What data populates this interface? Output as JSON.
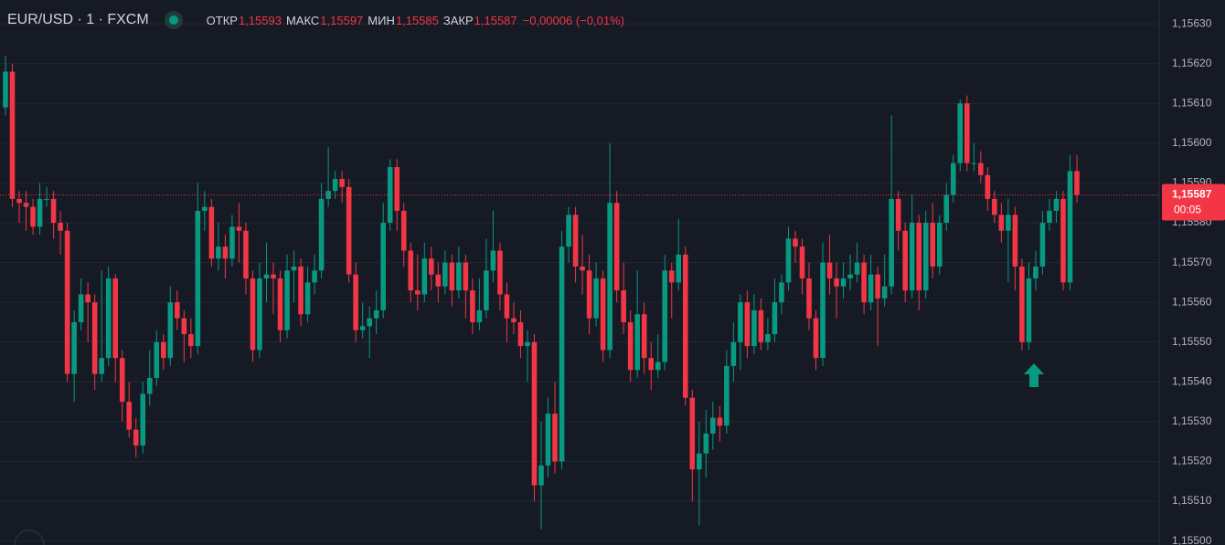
{
  "header": {
    "symbol": "EUR/USD · 1 · FXCM",
    "open_label": "ОТКР",
    "open": "1,15593",
    "high_label": "МАКС",
    "high": "1,15597",
    "low_label": "МИН",
    "low": "1,15585",
    "close_label": "ЗАКР",
    "close": "1,15587",
    "change": "−0,00006 (−0,01%)"
  },
  "chart_data": {
    "type": "candlestick",
    "up_color": "#089981",
    "down_color": "#f23645",
    "ylim": [
      1.15499,
      1.15636
    ],
    "yticks": [
      {
        "value": 1.155,
        "label": "1,15500"
      },
      {
        "value": 1.1551,
        "label": "1,15510"
      },
      {
        "value": 1.1552,
        "label": "1,15520"
      },
      {
        "value": 1.1553,
        "label": "1,15530"
      },
      {
        "value": 1.1554,
        "label": "1,15540"
      },
      {
        "value": 1.1555,
        "label": "1,15550"
      },
      {
        "value": 1.1556,
        "label": "1,15560"
      },
      {
        "value": 1.1557,
        "label": "1,15570"
      },
      {
        "value": 1.1558,
        "label": "1,15580"
      },
      {
        "value": 1.1559,
        "label": "1,15590"
      },
      {
        "value": 1.156,
        "label": "1,15600"
      },
      {
        "value": 1.1561,
        "label": "1,15610"
      },
      {
        "value": 1.1562,
        "label": "1,15620"
      },
      {
        "value": 1.1563,
        "label": "1,15630"
      }
    ],
    "grid": true,
    "last_price": {
      "value": 1.15587,
      "label": "1,15587"
    },
    "countdown": "00:05",
    "open": [
      1.15609,
      1.15618,
      1.15586,
      1.15585,
      1.15584,
      1.15579,
      1.15586,
      1.15586,
      1.1558,
      1.15578,
      1.15542,
      1.15555,
      1.15562,
      1.1556,
      1.15542,
      1.15546,
      1.15566,
      1.15546,
      1.15535,
      1.15528,
      1.15524,
      1.15537,
      1.15541,
      1.1555,
      1.15546,
      1.1556,
      1.15556,
      1.15552,
      1.15549,
      1.15583,
      1.15584,
      1.15571,
      1.15574,
      1.15571,
      1.15579,
      1.15578,
      1.15566,
      1.15548,
      1.15566,
      1.15567,
      1.15566,
      1.15553,
      1.15568,
      1.15569,
      1.15557,
      1.15565,
      1.15568,
      1.15586,
      1.15588,
      1.15591,
      1.15589,
      1.15567,
      1.15553,
      1.15554,
      1.15556,
      1.15558,
      1.1558,
      1.15594,
      1.15583,
      1.15573,
      1.15563,
      1.15562,
      1.15571,
      1.15567,
      1.15564,
      1.1557,
      1.15563,
      1.1557,
      1.15563,
      1.15555,
      1.15558,
      1.15568,
      1.15573,
      1.15562,
      1.15556,
      1.15555,
      1.15549,
      1.1555,
      1.15514,
      1.15519,
      1.15532,
      1.1552,
      1.15574,
      1.15582,
      1.15569,
      1.15568,
      1.15556,
      1.15566,
      1.15548,
      1.15585,
      1.15563,
      1.15555,
      1.15543,
      1.15557,
      1.15546,
      1.15543,
      1.15545,
      1.15568,
      1.15565,
      1.15572,
      1.15536,
      1.15518,
      1.15522,
      1.15527,
      1.15531,
      1.15529,
      1.15544,
      1.1555,
      1.1556,
      1.15549,
      1.15558,
      1.1555,
      1.15552,
      1.1556,
      1.15565,
      1.15576,
      1.15574,
      1.15566,
      1.15556,
      1.15546,
      1.1557,
      1.15566,
      1.15564,
      1.15566,
      1.15567,
      1.1557,
      1.1556,
      1.15567,
      1.15561,
      1.15564,
      1.15586,
      1.15578,
      1.15563,
      1.1558,
      1.15563,
      1.1558,
      1.15569,
      1.1558,
      1.15587,
      1.15595,
      1.1561,
      1.15595,
      1.15595,
      1.15592,
      1.15586,
      1.15582,
      1.15578,
      1.15582,
      1.15569,
      1.1555,
      1.15566,
      1.15569,
      1.1558,
      1.15583,
      1.15586,
      1.15565,
      1.15593
    ],
    "high": [
      1.15622,
      1.1562,
      1.15588,
      1.15588,
      1.15586,
      1.1559,
      1.15589,
      1.15588,
      1.15583,
      1.1558,
      1.15558,
      1.15566,
      1.15565,
      1.15562,
      1.15568,
      1.15569,
      1.15567,
      1.15548,
      1.1554,
      1.15531,
      1.1554,
      1.15548,
      1.15553,
      1.15552,
      1.15564,
      1.15563,
      1.15558,
      1.15556,
      1.1559,
      1.15588,
      1.15586,
      1.1558,
      1.15577,
      1.15582,
      1.15585,
      1.1558,
      1.15568,
      1.1557,
      1.15575,
      1.1557,
      1.15568,
      1.15572,
      1.15573,
      1.15571,
      1.15569,
      1.15572,
      1.1559,
      1.15599,
      1.15593,
      1.15593,
      1.15591,
      1.1557,
      1.1556,
      1.15559,
      1.15563,
      1.15585,
      1.15596,
      1.15596,
      1.15585,
      1.15575,
      1.15572,
      1.15575,
      1.15574,
      1.1557,
      1.15573,
      1.15572,
      1.15574,
      1.15572,
      1.15566,
      1.15566,
      1.15576,
      1.15583,
      1.15575,
      1.15565,
      1.1556,
      1.15558,
      1.15553,
      1.15552,
      1.1553,
      1.15536,
      1.1554,
      1.15578,
      1.15584,
      1.15584,
      1.15577,
      1.15572,
      1.1557,
      1.15568,
      1.156,
      1.15588,
      1.1557,
      1.15558,
      1.15568,
      1.1556,
      1.1555,
      1.15552,
      1.15572,
      1.1557,
      1.15581,
      1.15574,
      1.15538,
      1.1553,
      1.15533,
      1.15535,
      1.15534,
      1.15548,
      1.15555,
      1.15562,
      1.15563,
      1.15562,
      1.15561,
      1.15556,
      1.15566,
      1.15567,
      1.15579,
      1.15578,
      1.15576,
      1.1557,
      1.15558,
      1.15575,
      1.15577,
      1.1557,
      1.1557,
      1.15572,
      1.15575,
      1.15572,
      1.15572,
      1.15569,
      1.15572,
      1.15607,
      1.15588,
      1.1558,
      1.15587,
      1.15582,
      1.15583,
      1.15585,
      1.15582,
      1.1559,
      1.15597,
      1.15611,
      1.15612,
      1.156,
      1.15598,
      1.15594,
      1.15588,
      1.15585,
      1.15586,
      1.15584,
      1.15571,
      1.1557,
      1.15573,
      1.15583,
      1.15586,
      1.15588,
      1.15588,
      1.15597,
      1.15597
    ],
    "low": [
      1.15607,
      1.15584,
      1.1558,
      1.15578,
      1.15577,
      1.15577,
      1.15584,
      1.15576,
      1.15572,
      1.1554,
      1.15535,
      1.15553,
      1.1555,
      1.15538,
      1.1554,
      1.15544,
      1.1554,
      1.1553,
      1.15526,
      1.15521,
      1.15522,
      1.15534,
      1.15539,
      1.15543,
      1.15544,
      1.15553,
      1.15545,
      1.15546,
      1.15547,
      1.15578,
      1.15569,
      1.15568,
      1.15566,
      1.15569,
      1.1557,
      1.15562,
      1.15545,
      1.15546,
      1.1556,
      1.15557,
      1.1555,
      1.15551,
      1.1556,
      1.15554,
      1.15555,
      1.15562,
      1.15566,
      1.15584,
      1.15586,
      1.15585,
      1.15565,
      1.1555,
      1.15551,
      1.15546,
      1.15552,
      1.15556,
      1.15578,
      1.15578,
      1.15569,
      1.1556,
      1.15558,
      1.1556,
      1.15563,
      1.1556,
      1.15562,
      1.15559,
      1.15561,
      1.15556,
      1.15552,
      1.15553,
      1.15556,
      1.15565,
      1.15558,
      1.1555,
      1.15552,
      1.15546,
      1.1554,
      1.1551,
      1.15503,
      1.15516,
      1.15517,
      1.15518,
      1.1557,
      1.15565,
      1.15562,
      1.15552,
      1.15554,
      1.15545,
      1.15546,
      1.1556,
      1.15552,
      1.1554,
      1.15541,
      1.15542,
      1.15538,
      1.15541,
      1.15543,
      1.15556,
      1.15563,
      1.15534,
      1.1551,
      1.15504,
      1.15516,
      1.15523,
      1.15525,
      1.15527,
      1.1554,
      1.15543,
      1.15546,
      1.15547,
      1.15548,
      1.15548,
      1.1555,
      1.15557,
      1.15563,
      1.1557,
      1.15562,
      1.15553,
      1.15543,
      1.15544,
      1.15562,
      1.15556,
      1.15561,
      1.15563,
      1.15565,
      1.15557,
      1.15558,
      1.15549,
      1.15559,
      1.15562,
      1.15573,
      1.1556,
      1.15561,
      1.15558,
      1.15561,
      1.15566,
      1.15567,
      1.15578,
      1.15585,
      1.15593,
      1.15593,
      1.15593,
      1.1559,
      1.15583,
      1.1558,
      1.15575,
      1.15565,
      1.15563,
      1.15548,
      1.15548,
      1.15563,
      1.15567,
      1.15578,
      1.1558,
      1.15563,
      1.15563,
      1.15585
    ],
    "close": [
      1.15618,
      1.15586,
      1.15585,
      1.15584,
      1.15579,
      1.15586,
      1.15586,
      1.1558,
      1.15578,
      1.15542,
      1.15555,
      1.15562,
      1.1556,
      1.15542,
      1.15546,
      1.15566,
      1.15546,
      1.15535,
      1.15528,
      1.15524,
      1.15537,
      1.15541,
      1.1555,
      1.15546,
      1.1556,
      1.15556,
      1.15552,
      1.15549,
      1.15583,
      1.15584,
      1.15571,
      1.15574,
      1.15571,
      1.15579,
      1.15578,
      1.15566,
      1.15548,
      1.15566,
      1.15567,
      1.15566,
      1.15553,
      1.15568,
      1.15569,
      1.15557,
      1.15565,
      1.15568,
      1.15586,
      1.15588,
      1.15591,
      1.15589,
      1.15567,
      1.15553,
      1.15554,
      1.15556,
      1.15558,
      1.1558,
      1.15594,
      1.15583,
      1.15573,
      1.15563,
      1.15562,
      1.15571,
      1.15567,
      1.15564,
      1.1557,
      1.15563,
      1.1557,
      1.15563,
      1.15555,
      1.15558,
      1.15568,
      1.15573,
      1.15562,
      1.15556,
      1.15555,
      1.15549,
      1.1555,
      1.15514,
      1.15519,
      1.15532,
      1.1552,
      1.15574,
      1.15582,
      1.15569,
      1.15568,
      1.15556,
      1.15566,
      1.15548,
      1.15585,
      1.15563,
      1.15555,
      1.15543,
      1.15557,
      1.15546,
      1.15543,
      1.15545,
      1.15568,
      1.15565,
      1.15572,
      1.15536,
      1.15518,
      1.15522,
      1.15527,
      1.15531,
      1.15529,
      1.15544,
      1.1555,
      1.1556,
      1.15549,
      1.15558,
      1.1555,
      1.15552,
      1.1556,
      1.15565,
      1.15576,
      1.15574,
      1.15566,
      1.15556,
      1.15546,
      1.1557,
      1.15566,
      1.15564,
      1.15566,
      1.15567,
      1.1557,
      1.1556,
      1.15567,
      1.15561,
      1.15564,
      1.15586,
      1.15578,
      1.15563,
      1.1558,
      1.15563,
      1.1558,
      1.15569,
      1.1558,
      1.15587,
      1.15595,
      1.1561,
      1.15595,
      1.15595,
      1.15592,
      1.15586,
      1.15582,
      1.15578,
      1.15582,
      1.15569,
      1.1555,
      1.15566,
      1.15569,
      1.1558,
      1.15583,
      1.15586,
      1.15565,
      1.15593,
      1.15587
    ]
  }
}
